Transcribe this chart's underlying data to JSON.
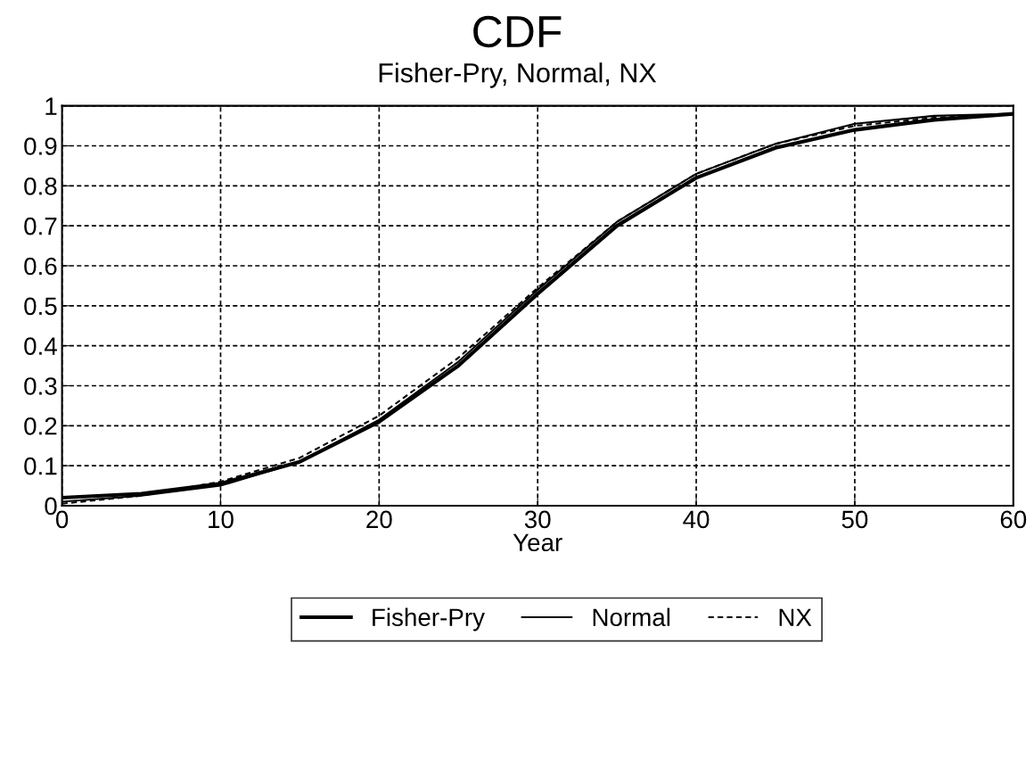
{
  "chart_data": {
    "type": "line",
    "title": "CDF",
    "subtitle": "Fisher-Pry, Normal, NX",
    "xlabel": "Year",
    "x": [
      0,
      5,
      10,
      15,
      20,
      25,
      30,
      35,
      40,
      45,
      50,
      55,
      60
    ],
    "series": [
      {
        "name": "Fisher-Pry",
        "color": "#000000",
        "line_style": "solid",
        "values": [
          0.02,
          0.03,
          0.055,
          0.11,
          0.21,
          0.35,
          0.53,
          0.7,
          0.82,
          0.895,
          0.94,
          0.965,
          0.98
        ]
      },
      {
        "name": "Normal",
        "color": "#000000",
        "line_style": "solid",
        "values": [
          0.01,
          0.025,
          0.05,
          0.11,
          0.215,
          0.36,
          0.54,
          0.71,
          0.83,
          0.905,
          0.955,
          0.975,
          0.98
        ]
      },
      {
        "name": "NX",
        "color": "#000000",
        "line_style": "dashed",
        "values": [
          0.005,
          0.025,
          0.06,
          0.12,
          0.225,
          0.37,
          0.545,
          0.71,
          0.83,
          0.905,
          0.95,
          0.97,
          0.98
        ]
      }
    ],
    "xlim": [
      0,
      60
    ],
    "xticks": [
      0,
      10,
      20,
      30,
      40,
      50,
      60
    ],
    "ylim": [
      0,
      1
    ],
    "yticks": [
      0,
      0.1,
      0.2,
      0.3,
      0.4,
      0.5,
      0.6,
      0.7,
      0.8,
      0.9,
      1
    ],
    "grid": true,
    "legend": "bottom",
    "marker": "none"
  }
}
